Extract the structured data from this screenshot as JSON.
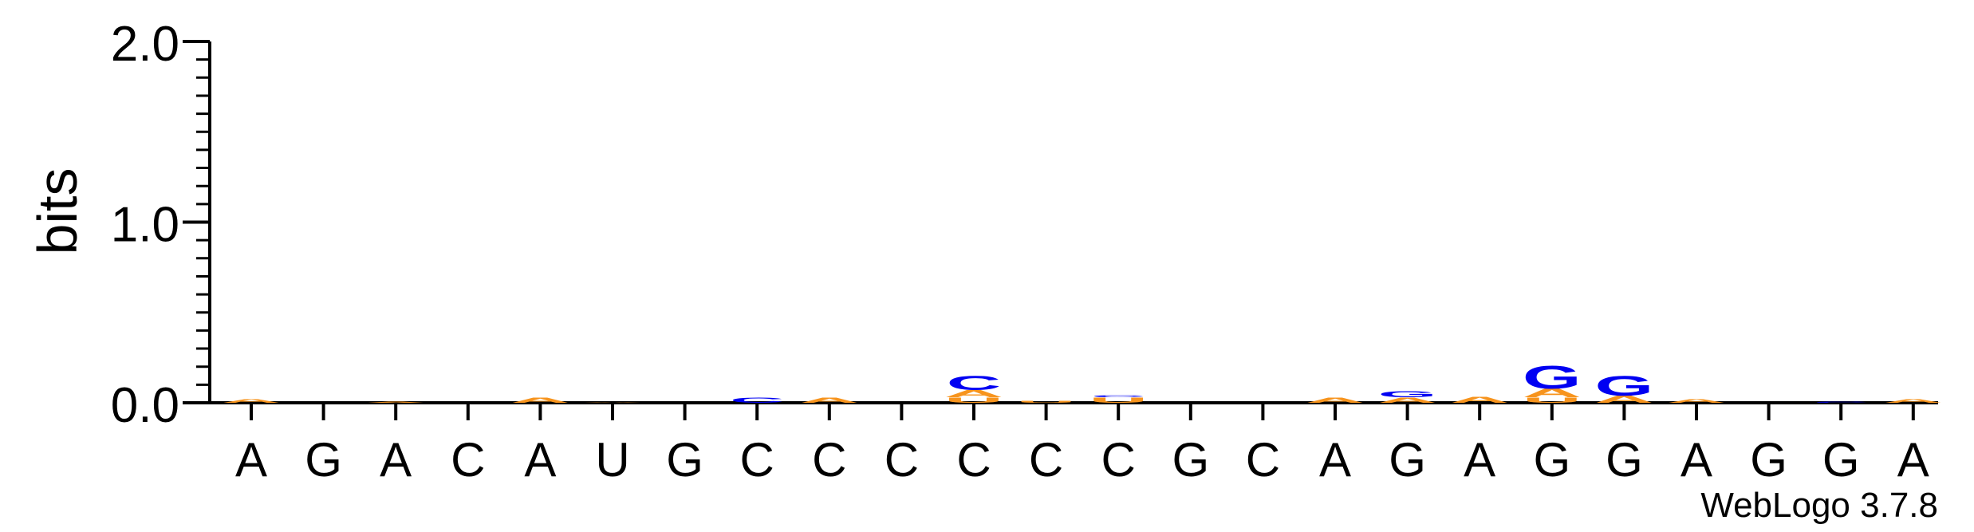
{
  "chart_data": {
    "type": "sequence-logo",
    "ylabel": "bits",
    "ylim": [
      0,
      2.0
    ],
    "yticks": [
      {
        "value": 0.0,
        "label": "0.0"
      },
      {
        "value": 1.0,
        "label": "1.0"
      },
      {
        "value": 2.0,
        "label": "2.0"
      }
    ],
    "yminor_step": 0.1,
    "xticklabels": [
      "A",
      "G",
      "A",
      "C",
      "A",
      "U",
      "G",
      "C",
      "C",
      "C",
      "C",
      "C",
      "C",
      "G",
      "C",
      "A",
      "G",
      "A",
      "G",
      "G",
      "A",
      "G",
      "G",
      "A"
    ],
    "colors": {
      "A": "#f7941d",
      "G": "#0000f2",
      "C": "#0000f2",
      "U": "#f7941d"
    },
    "columns": [
      {
        "letters": [
          {
            "base": "A",
            "bits": 0.02
          }
        ]
      },
      {
        "letters": []
      },
      {
        "letters": [
          {
            "base": "A",
            "bits": 0.005
          }
        ]
      },
      {
        "letters": []
      },
      {
        "letters": [
          {
            "base": "A",
            "bits": 0.03
          }
        ]
      },
      {
        "letters": [
          {
            "base": "A",
            "bits": 0.003
          }
        ]
      },
      {
        "letters": []
      },
      {
        "letters": [
          {
            "base": "C",
            "bits": 0.03
          }
        ]
      },
      {
        "letters": [
          {
            "base": "A",
            "bits": 0.03
          }
        ]
      },
      {
        "letters": []
      },
      {
        "letters": [
          {
            "base": "U",
            "bits": 0.03
          },
          {
            "base": "A",
            "bits": 0.04
          },
          {
            "base": "C",
            "bits": 0.08
          }
        ]
      },
      {
        "letters": [
          {
            "base": "U",
            "bits": 0.01
          }
        ]
      },
      {
        "letters": [
          {
            "base": "U",
            "bits": 0.03
          },
          {
            "base": "C",
            "bits": 0.01
          }
        ]
      },
      {
        "letters": []
      },
      {
        "letters": []
      },
      {
        "letters": [
          {
            "base": "A",
            "bits": 0.03
          }
        ]
      },
      {
        "letters": [
          {
            "base": "A",
            "bits": 0.03
          },
          {
            "base": "G",
            "bits": 0.035
          }
        ]
      },
      {
        "letters": [
          {
            "base": "A",
            "bits": 0.035
          }
        ]
      },
      {
        "letters": [
          {
            "base": "U",
            "bits": 0.03
          },
          {
            "base": "A",
            "bits": 0.05
          },
          {
            "base": "G",
            "bits": 0.13
          }
        ]
      },
      {
        "letters": [
          {
            "base": "A",
            "bits": 0.04
          },
          {
            "base": "G",
            "bits": 0.11
          }
        ]
      },
      {
        "letters": [
          {
            "base": "A",
            "bits": 0.02
          }
        ]
      },
      {
        "letters": []
      },
      {
        "letters": [
          {
            "base": "C",
            "bits": 0.005
          }
        ]
      },
      {
        "letters": [
          {
            "base": "A",
            "bits": 0.02
          }
        ]
      }
    ],
    "grid": false,
    "legend": "none"
  },
  "credit": "WebLogo 3.7.8"
}
